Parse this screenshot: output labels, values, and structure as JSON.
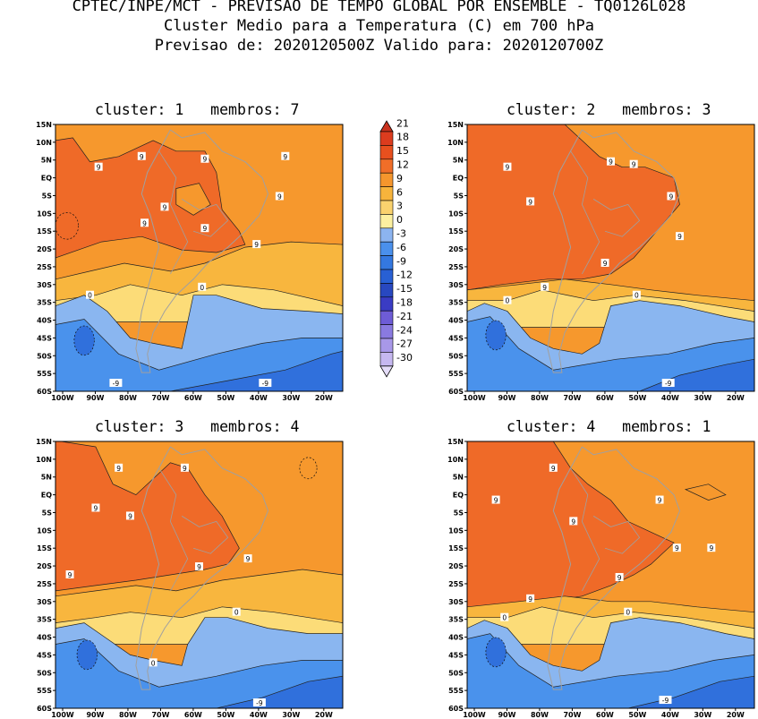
{
  "header": {
    "line1": "CPTEC/INPE/MCT - PREVISAO DE TEMPO GLOBAL POR ENSEMBLE - TQ0126L028",
    "line2": "Cluster Medio para a Temperatura (C) em 700 hPa",
    "line3": "Previsao de: 2020120500Z   Valido para: 2020120700Z"
  },
  "panels": [
    {
      "title": "cluster: 1   membros: 7"
    },
    {
      "title": "cluster: 2   membros: 3"
    },
    {
      "title": "cluster: 3   membros: 4"
    },
    {
      "title": "cluster: 4   membros: 1"
    }
  ],
  "axes": {
    "lat_labels": [
      "15N",
      "10N",
      "5N",
      "EQ",
      "5S",
      "10S",
      "15S",
      "20S",
      "25S",
      "30S",
      "35S",
      "40S",
      "45S",
      "50S",
      "55S",
      "60S"
    ],
    "lon_labels": [
      "100W",
      "90W",
      "80W",
      "70W",
      "60W",
      "50W",
      "40W",
      "30W",
      "20W"
    ]
  },
  "colorbar": {
    "levels": [
      "21",
      "18",
      "15",
      "12",
      "9",
      "6",
      "3",
      "0",
      "-3",
      "-6",
      "-9",
      "-12",
      "-15",
      "-18",
      "-21",
      "-24",
      "-27",
      "-30"
    ],
    "colors": [
      "#c8321e",
      "#dc3c1e",
      "#e8501e",
      "#f06e28",
      "#f5962d",
      "#f7b43c",
      "#fad26e",
      "#fcf0a0",
      "#8cb4f0",
      "#4a90ec",
      "#3478e0",
      "#2860d4",
      "#2848c0",
      "#3a3cc4",
      "#6e5cd6",
      "#8a7ae0",
      "#a898e8",
      "#c6b8f0",
      "#e4dcf8"
    ]
  },
  "contour_labels": {
    "p1": [
      "9",
      "9",
      "9",
      "9",
      "9",
      "9",
      "9",
      "9",
      "9",
      "0",
      "0",
      "-9",
      "-9"
    ],
    "p2": [
      "9",
      "9",
      "9",
      "9",
      "9",
      "9",
      "9",
      "9",
      "0",
      "0",
      "-9"
    ],
    "p3": [
      "9",
      "9",
      "9",
      "9",
      "9",
      "9",
      "9",
      "0",
      "0",
      "-9"
    ],
    "p4": [
      "9",
      "9",
      "9",
      "9",
      "9",
      "9",
      "9",
      "9",
      "0",
      "0",
      "-9"
    ]
  }
}
